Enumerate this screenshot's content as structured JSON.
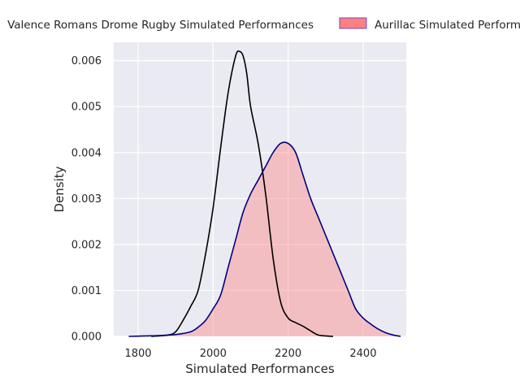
{
  "chart_data": {
    "type": "area",
    "xlabel": "Simulated Performances",
    "ylabel": "Density",
    "xlim": [
      1735,
      2515
    ],
    "ylim": [
      0,
      0.0064
    ],
    "x_ticks": [
      1800,
      2000,
      2200,
      2400
    ],
    "x_tick_labels": [
      "1800",
      "2000",
      "2200",
      "2400"
    ],
    "y_ticks": [
      0,
      0.001,
      0.002,
      0.003,
      0.004,
      0.005,
      0.006
    ],
    "y_tick_labels": [
      "0.000",
      "0.001",
      "0.002",
      "0.003",
      "0.004",
      "0.005",
      "0.006"
    ],
    "grid": true,
    "legend_placement": "top",
    "series": [
      {
        "name": "Valence Romans Drome Rugby Simulated Performances",
        "color": "#000000",
        "fill": "none",
        "x": [
          1835,
          1880,
          1900,
          1920,
          1940,
          1960,
          1980,
          2000,
          2020,
          2040,
          2060,
          2070,
          2080,
          2090,
          2100,
          2120,
          2140,
          2160,
          2180,
          2200,
          2220,
          2240,
          2260,
          2280,
          2300,
          2320
        ],
        "y": [
          0,
          3e-05,
          0.0001,
          0.00035,
          0.00065,
          0.001,
          0.0018,
          0.0028,
          0.0041,
          0.0053,
          0.0061,
          0.0062,
          0.0061,
          0.0057,
          0.005,
          0.0042,
          0.0031,
          0.0017,
          0.00075,
          0.0004,
          0.0003,
          0.00022,
          0.00012,
          3e-05,
          1e-05,
          0
        ]
      },
      {
        "name": "Aurillac Simulated Performances",
        "color": "#000080",
        "fill": "#ff8080",
        "x": [
          1775,
          1820,
          1860,
          1900,
          1940,
          1960,
          1980,
          2000,
          2020,
          2040,
          2060,
          2080,
          2100,
          2120,
          2140,
          2160,
          2180,
          2200,
          2220,
          2240,
          2260,
          2280,
          2300,
          2320,
          2340,
          2360,
          2380,
          2400,
          2420,
          2440,
          2460,
          2480,
          2500
        ],
        "y": [
          0,
          1e-05,
          2e-05,
          4e-05,
          0.0001,
          0.0002,
          0.00035,
          0.0006,
          0.0009,
          0.0015,
          0.0021,
          0.0027,
          0.0031,
          0.0034,
          0.0037,
          0.004,
          0.0042,
          0.0042,
          0.004,
          0.0035,
          0.003,
          0.0026,
          0.0022,
          0.0018,
          0.0014,
          0.001,
          0.0006,
          0.0004,
          0.00027,
          0.00016,
          8e-05,
          3e-05,
          0
        ]
      }
    ]
  }
}
